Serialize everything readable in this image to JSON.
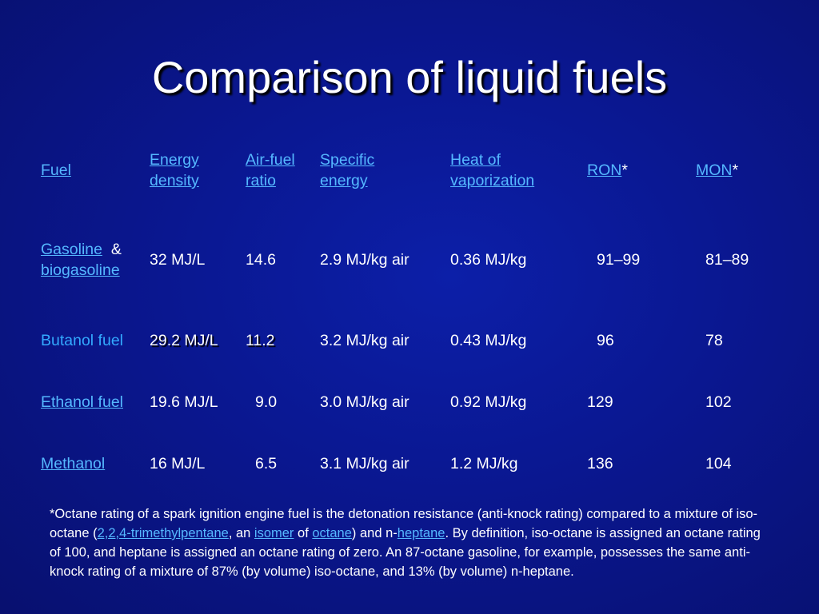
{
  "slide": {
    "title": "Comparison of liquid fuels"
  },
  "table": {
    "headers": {
      "fuel": "Fuel",
      "energy_density_1": "Energy",
      "energy_density_2": "density",
      "air_fuel_1": "Air-fuel",
      "air_fuel_2": "ratio",
      "specific_energy_1": "Specific",
      "specific_energy_2": "energy",
      "heat_vap_1": "Heat of",
      "heat_vap_2": "vaporization",
      "ron": "RON",
      "ron_star": "*",
      "mon": "MON",
      "mon_star": "*"
    },
    "rows": [
      {
        "fuel_a": "Gasoline",
        "fuel_amp": "&",
        "fuel_b": "biogasoline",
        "energy_density": "32 MJ/L",
        "air_fuel": "14.6",
        "specific_energy": "2.9 MJ/kg air",
        "heat_vap": "0.36 MJ/kg",
        "ron": "91–99",
        "mon": "81–89"
      },
      {
        "fuel": "Butanol fuel",
        "energy_density": "29.2 MJ/L",
        "air_fuel": "11.2",
        "specific_energy": "3.2 MJ/kg air",
        "heat_vap": "0.43 MJ/kg",
        "ron": "96",
        "mon": "78"
      },
      {
        "fuel": "Ethanol fuel",
        "energy_density": "19.6 MJ/L",
        "air_fuel": "9.0",
        "specific_energy": "3.0 MJ/kg air",
        "heat_vap": "0.92 MJ/kg",
        "ron": "129",
        "mon": "102"
      },
      {
        "fuel": "Methanol",
        "energy_density": "16 MJ/L",
        "air_fuel": "6.5",
        "specific_energy": "3.1 MJ/kg air",
        "heat_vap": "1.2 MJ/kg",
        "ron": "136",
        "mon": "104"
      }
    ]
  },
  "footnote": {
    "t1": "*Octane rating of a spark ignition engine fuel is the detonation resistance (anti-knock rating) compared to a mixture of iso-octane (",
    "link_tmp": "2,2,4-trimethylpentane",
    "t2": ", an ",
    "link_isomer": "isomer",
    "t3": " of ",
    "link_octane": "octane",
    "t4": ") and n-",
    "link_heptane": "heptane",
    "t5": ". By definition, iso-octane is assigned an octane rating of 100, and heptane is assigned an octane rating of zero.  An 87-octane gasoline, for example, possesses the same anti-knock rating of a mixture of 87% (by volume) iso-octane, and 13% (by volume) n-heptane."
  },
  "colors": {
    "background": "#0a1790",
    "link": "#55b8ff",
    "text": "#ffffff"
  }
}
